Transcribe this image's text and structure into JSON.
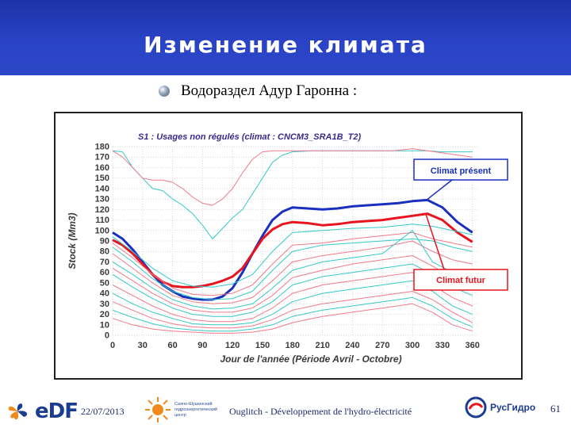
{
  "slide": {
    "title": "Изменение климата",
    "subtitle": "Водораздел Адур Гаронна :"
  },
  "footer": {
    "date": "22/07/2013",
    "text": "Ouglitch - Développement de l'hydro-électricité",
    "page_number": "61",
    "edf_logo_text": "eDF",
    "partner_logo_text": "Саяно-Шушенский гидроэнергетический центр",
    "rushydro_text": "РусГидро"
  },
  "chart_data": {
    "type": "line",
    "title": "S1 : Usages non régulés (climat : CNCM3_SRA1B_T2)",
    "xlabel": "Jour de l'année (Période Avril - Octobre)",
    "ylabel": "Stock (Mm3)",
    "xlim": [
      0,
      365
    ],
    "ylim": [
      0,
      180
    ],
    "xticks": [
      0,
      30,
      60,
      90,
      120,
      150,
      180,
      210,
      240,
      270,
      300,
      330,
      360
    ],
    "yticks": [
      0,
      10,
      20,
      30,
      40,
      50,
      60,
      70,
      80,
      90,
      100,
      110,
      120,
      130,
      140,
      150,
      160,
      170,
      180
    ],
    "grid": true,
    "annotations": [
      {
        "text": "Climat présent",
        "color": "#1a2fc0",
        "points_to": [
          314,
          129
        ]
      },
      {
        "text": "Climat  futur",
        "color": "#e8141e",
        "points_to": [
          318,
          116
        ]
      }
    ],
    "series": [
      {
        "key": "present",
        "color": "#1a2fc0",
        "width": 3,
        "x": [
          0,
          10,
          20,
          30,
          40,
          50,
          60,
          70,
          80,
          90,
          100,
          110,
          120,
          130,
          140,
          150,
          160,
          170,
          180,
          195,
          210,
          225,
          240,
          255,
          270,
          285,
          300,
          315,
          330,
          345,
          360
        ],
        "y": [
          98,
          92,
          82,
          70,
          58,
          48,
          42,
          37,
          35,
          34,
          34,
          37,
          45,
          60,
          78,
          95,
          110,
          118,
          122,
          121,
          120,
          121,
          123,
          124,
          125,
          126,
          128,
          129,
          122,
          108,
          98
        ]
      },
      {
        "key": "futur",
        "color": "#e8141e",
        "width": 3,
        "x": [
          0,
          10,
          20,
          30,
          40,
          50,
          60,
          70,
          80,
          90,
          100,
          110,
          120,
          130,
          140,
          150,
          160,
          170,
          180,
          195,
          210,
          225,
          240,
          255,
          270,
          285,
          300,
          315,
          330,
          345,
          360
        ],
        "y": [
          91,
          86,
          78,
          68,
          58,
          51,
          47,
          46,
          46,
          47,
          49,
          52,
          56,
          64,
          78,
          92,
          101,
          106,
          108,
          107,
          105,
          106,
          108,
          109,
          110,
          112,
          114,
          116,
          110,
          98,
          89
        ]
      },
      {
        "key": "upper-cyan",
        "color": "#35c8c8",
        "width": 1,
        "x": [
          0,
          10,
          20,
          30,
          40,
          50,
          60,
          70,
          80,
          90,
          100,
          110,
          120,
          130,
          140,
          150,
          160,
          170,
          180,
          200,
          220,
          240,
          260,
          280,
          300,
          315,
          330,
          345,
          360
        ],
        "y": [
          176,
          175,
          160,
          150,
          140,
          138,
          130,
          124,
          116,
          105,
          92,
          102,
          112,
          120,
          135,
          150,
          165,
          172,
          175,
          176,
          176,
          176,
          176,
          176,
          176,
          176,
          175,
          175,
          175
        ]
      },
      {
        "key": "upper-pink",
        "color": "#f07a8a",
        "width": 1,
        "x": [
          0,
          10,
          20,
          30,
          40,
          50,
          60,
          70,
          80,
          90,
          100,
          110,
          120,
          130,
          140,
          150,
          160,
          170,
          180,
          200,
          220,
          240,
          260,
          280,
          300,
          315,
          330,
          345,
          360
        ],
        "y": [
          176,
          170,
          160,
          150,
          148,
          148,
          146,
          140,
          132,
          126,
          124,
          130,
          140,
          155,
          168,
          175,
          176,
          176,
          176,
          176,
          176,
          176,
          176,
          176,
          178,
          176,
          174,
          172,
          170
        ]
      },
      {
        "key": "band-1",
        "color": "#35c8c8",
        "width": 1,
        "x": [
          0,
          20,
          40,
          60,
          80,
          100,
          120,
          140,
          160,
          180,
          210,
          240,
          270,
          300,
          320,
          340,
          360
        ],
        "y": [
          94,
          80,
          64,
          52,
          47,
          46,
          49,
          58,
          80,
          98,
          100,
          102,
          103,
          106,
          104,
          100,
          96
        ]
      },
      {
        "key": "band-2",
        "color": "#f07a8a",
        "width": 1,
        "x": [
          0,
          20,
          40,
          60,
          80,
          100,
          120,
          140,
          160,
          180,
          210,
          240,
          270,
          300,
          320,
          340,
          360
        ],
        "y": [
          88,
          74,
          58,
          45,
          39,
          38,
          40,
          48,
          68,
          86,
          88,
          92,
          95,
          98,
          92,
          88,
          84
        ]
      },
      {
        "key": "band-3",
        "color": "#35c8c8",
        "width": 1,
        "x": [
          0,
          20,
          40,
          60,
          80,
          100,
          120,
          140,
          160,
          180,
          210,
          240,
          270,
          300,
          320,
          340,
          360
        ],
        "y": [
          84,
          70,
          54,
          42,
          36,
          34,
          35,
          42,
          62,
          80,
          86,
          88,
          90,
          92,
          90,
          84,
          80
        ]
      },
      {
        "key": "band-4",
        "color": "#f07a8a",
        "width": 1,
        "x": [
          0,
          20,
          40,
          60,
          80,
          100,
          120,
          140,
          160,
          180,
          210,
          240,
          270,
          300,
          320,
          340,
          360
        ],
        "y": [
          78,
          64,
          50,
          38,
          32,
          30,
          31,
          36,
          52,
          70,
          76,
          80,
          84,
          90,
          80,
          72,
          68
        ]
      },
      {
        "key": "band-5",
        "color": "#35c8c8",
        "width": 1,
        "x": [
          0,
          20,
          40,
          60,
          80,
          100,
          120,
          140,
          160,
          180,
          210,
          240,
          270,
          300,
          320,
          340,
          360
        ],
        "y": [
          70,
          58,
          45,
          34,
          28,
          25,
          26,
          30,
          45,
          62,
          70,
          74,
          78,
          100,
          70,
          60,
          56
        ]
      },
      {
        "key": "band-6",
        "color": "#f07a8a",
        "width": 1,
        "x": [
          0,
          20,
          40,
          60,
          80,
          100,
          120,
          140,
          160,
          180,
          210,
          240,
          270,
          300,
          320,
          340,
          360
        ],
        "y": [
          64,
          52,
          40,
          30,
          24,
          22,
          22,
          26,
          38,
          55,
          62,
          68,
          72,
          76,
          66,
          55,
          48
        ]
      },
      {
        "key": "band-7",
        "color": "#35c8c8",
        "width": 1,
        "x": [
          0,
          20,
          40,
          60,
          80,
          100,
          120,
          140,
          160,
          180,
          210,
          240,
          270,
          300,
          320,
          340,
          360
        ],
        "y": [
          58,
          46,
          35,
          26,
          20,
          18,
          18,
          22,
          32,
          48,
          56,
          60,
          64,
          68,
          58,
          46,
          38
        ]
      },
      {
        "key": "band-8",
        "color": "#f07a8a",
        "width": 1,
        "x": [
          0,
          20,
          40,
          60,
          80,
          100,
          120,
          140,
          160,
          180,
          210,
          240,
          270,
          300,
          320,
          340,
          360
        ],
        "y": [
          48,
          38,
          28,
          20,
          15,
          13,
          13,
          16,
          26,
          40,
          48,
          52,
          56,
          60,
          48,
          36,
          28
        ]
      },
      {
        "key": "band-9",
        "color": "#35c8c8",
        "width": 1,
        "x": [
          0,
          20,
          40,
          60,
          80,
          100,
          120,
          140,
          160,
          180,
          210,
          240,
          270,
          300,
          320,
          340,
          360
        ],
        "y": [
          40,
          30,
          22,
          16,
          11,
          10,
          10,
          12,
          20,
          32,
          40,
          44,
          48,
          52,
          42,
          28,
          20
        ]
      },
      {
        "key": "band-10",
        "color": "#f07a8a",
        "width": 1,
        "x": [
          0,
          20,
          40,
          60,
          80,
          100,
          120,
          140,
          160,
          180,
          210,
          240,
          270,
          300,
          320,
          340,
          360
        ],
        "y": [
          32,
          24,
          16,
          11,
          8,
          7,
          7,
          9,
          15,
          24,
          30,
          34,
          38,
          42,
          34,
          22,
          12
        ]
      },
      {
        "key": "band-11",
        "color": "#35c8c8",
        "width": 1,
        "x": [
          0,
          20,
          40,
          60,
          80,
          100,
          120,
          140,
          160,
          180,
          210,
          240,
          270,
          300,
          320,
          340,
          360
        ],
        "y": [
          24,
          17,
          11,
          7,
          5,
          4,
          4,
          6,
          10,
          18,
          24,
          28,
          32,
          36,
          28,
          16,
          8
        ]
      },
      {
        "key": "band-12",
        "color": "#f07a8a",
        "width": 1,
        "x": [
          0,
          20,
          40,
          60,
          80,
          100,
          120,
          140,
          160,
          180,
          210,
          240,
          270,
          300,
          320,
          340,
          360
        ],
        "y": [
          16,
          10,
          6,
          4,
          3,
          2,
          2,
          3,
          6,
          12,
          18,
          22,
          26,
          30,
          22,
          10,
          4
        ]
      }
    ]
  }
}
